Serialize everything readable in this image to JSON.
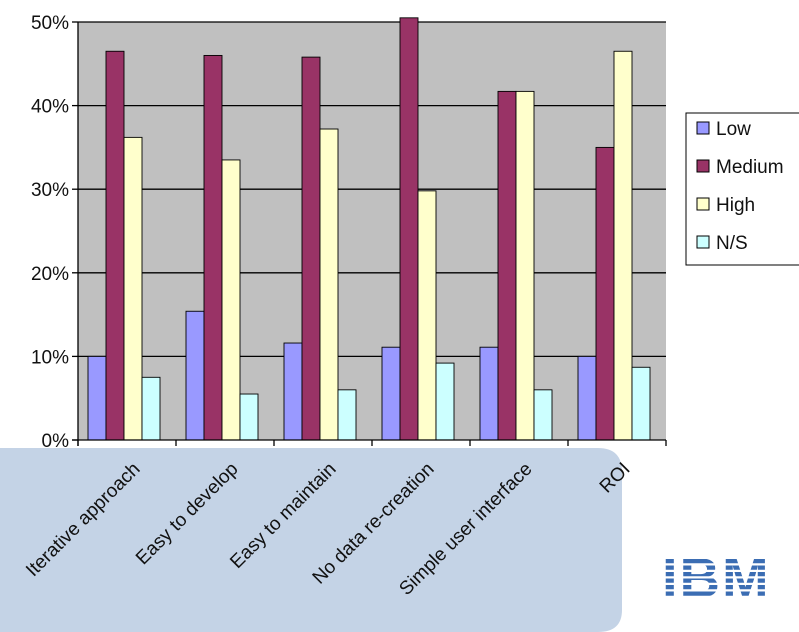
{
  "chart_data": {
    "type": "bar",
    "categories": [
      "Iterative approach",
      "Easy to develop",
      "Easy to maintain",
      "No data re-creation",
      "Simple user interface",
      "ROI"
    ],
    "series": [
      {
        "name": "Low",
        "color": "#9999ff",
        "values": [
          10,
          15.4,
          11.6,
          11.1,
          11.1,
          10
        ]
      },
      {
        "name": "Medium",
        "color": "#993366",
        "values": [
          46.5,
          46,
          45.8,
          50.5,
          41.7,
          35
        ]
      },
      {
        "name": "High",
        "color": "#ffffcc",
        "values": [
          36.2,
          33.5,
          37.2,
          29.8,
          41.7,
          46.5
        ]
      },
      {
        "name": "N/S",
        "color": "#ccffff",
        "values": [
          7.5,
          5.5,
          6,
          9.2,
          6,
          8.7
        ]
      }
    ],
    "ylim": [
      0,
      50
    ],
    "yticks": [
      "0%",
      "10%",
      "20%",
      "30%",
      "40%",
      "50%"
    ],
    "grid": true,
    "legend_position": "right",
    "plot_background": "#c0c0c0"
  },
  "logo": {
    "text": "IBM",
    "color": "#3b6db3"
  },
  "footer_panel_color": "#c4d3e6"
}
